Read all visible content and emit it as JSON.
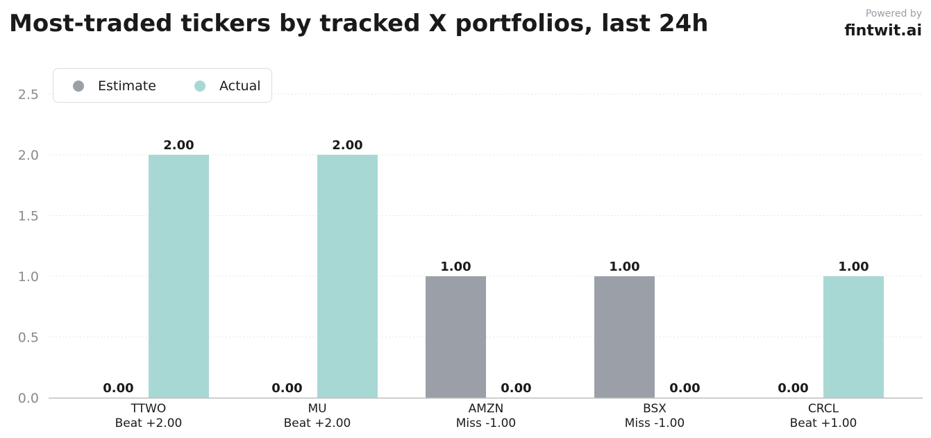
{
  "title": "Most-traded tickers by tracked X portfolios, last 24h",
  "brand": {
    "powered_by": "Powered by",
    "name": "fintwit.ai"
  },
  "colors": {
    "estimate": "#9ba0a8",
    "actual": "#a8d8d4",
    "grid": "#e6e6e6",
    "axis": "#bdbdbd",
    "tick_text": "#8a8a8a",
    "label_text": "#1a1a1a"
  },
  "legend": {
    "position": "top-left",
    "items": [
      {
        "label": "Estimate",
        "color": "#9ba0a8"
      },
      {
        "label": "Actual",
        "color": "#a8d8d4"
      }
    ]
  },
  "chart_data": {
    "type": "bar",
    "title": "Most-traded tickers by tracked X portfolios, last 24h",
    "categories": [
      "TTWO",
      "MU",
      "AMZN",
      "BSX",
      "CRCL"
    ],
    "category_sublabels": [
      "Beat +2.00",
      "Beat +2.00",
      "Miss -1.00",
      "Miss -1.00",
      "Beat +1.00"
    ],
    "series": [
      {
        "name": "Estimate",
        "values": [
          0,
          0,
          1,
          1,
          0
        ],
        "color": "#9ba0a8"
      },
      {
        "name": "Actual",
        "values": [
          2,
          2,
          0,
          0,
          1
        ],
        "color": "#a8d8d4"
      }
    ],
    "data_labels": [
      [
        "0.00",
        "0.00",
        "1.00",
        "1.00",
        "0.00"
      ],
      [
        "2.00",
        "2.00",
        "0.00",
        "0.00",
        "1.00"
      ]
    ],
    "xlabel": "",
    "ylabel": "",
    "ylim": [
      0,
      2.7
    ],
    "yticks": [
      0,
      0.5,
      1,
      1.5,
      2,
      2.5
    ],
    "ytick_labels": [
      "0.0",
      "0.5",
      "1.0",
      "1.5",
      "2.0",
      "2.5"
    ],
    "grid": true,
    "legend_position": "top-left"
  }
}
